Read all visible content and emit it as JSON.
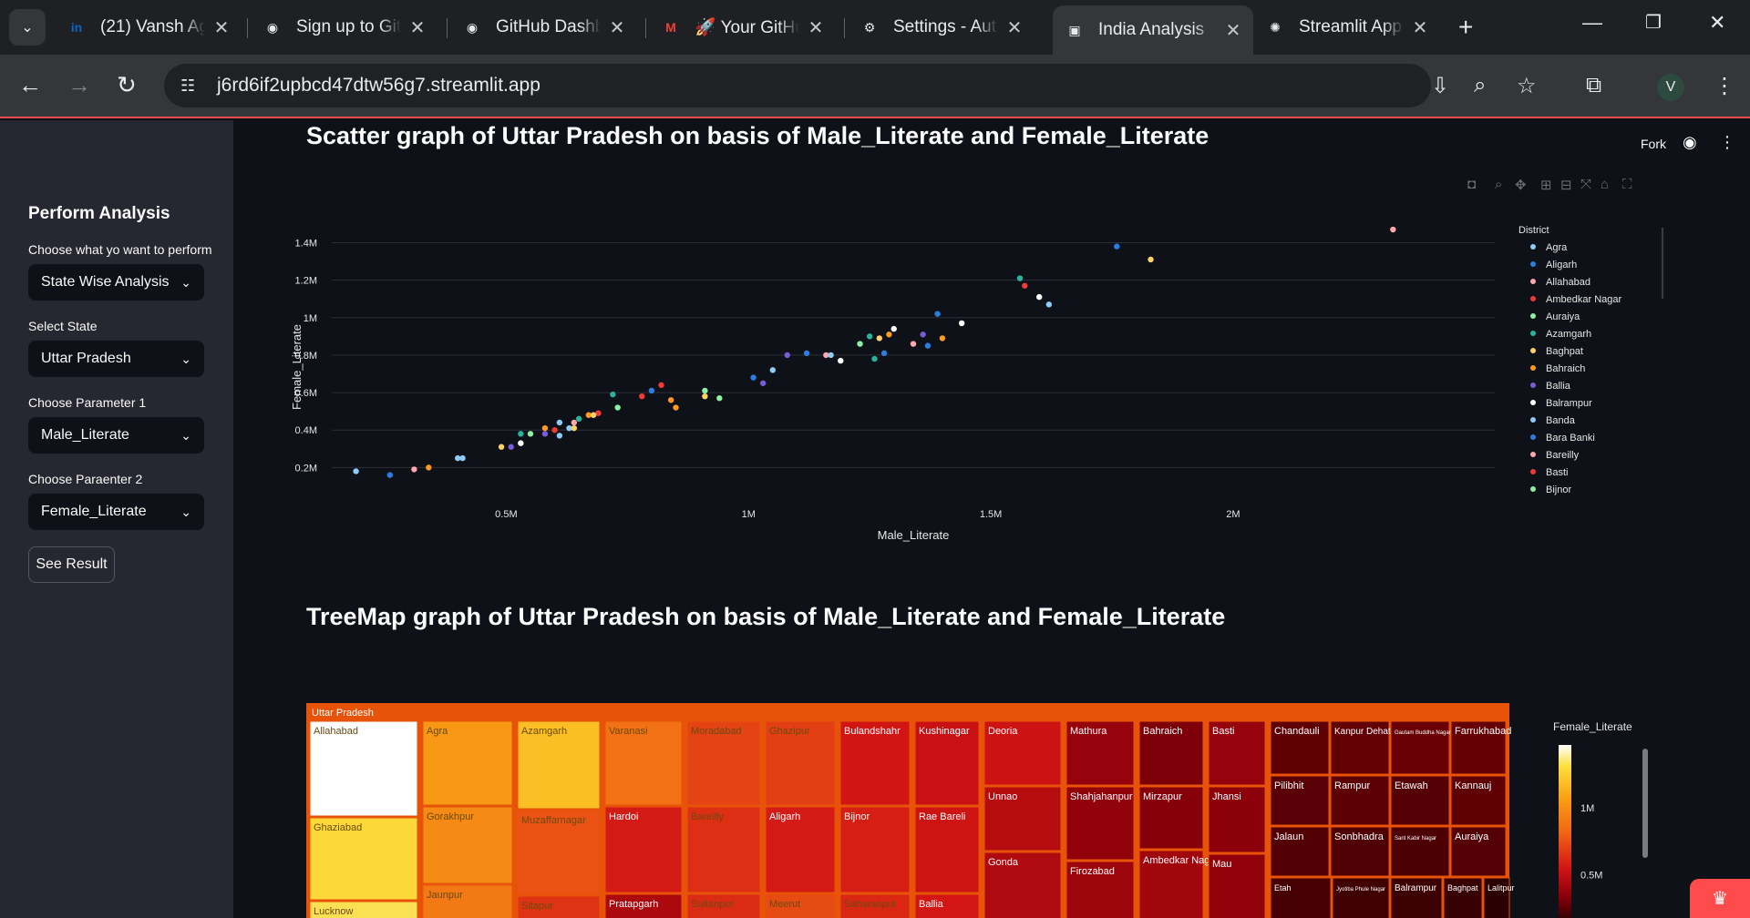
{
  "browser": {
    "tabs": [
      {
        "label": "(21) Vansh Ag",
        "icon": "linkedin-icon",
        "color": "#0a66c2",
        "glyph": "in"
      },
      {
        "label": "Sign up to Git",
        "icon": "github-icon",
        "color": "#e8eaed",
        "glyph": "◉"
      },
      {
        "label": "GitHub Dashb",
        "icon": "github-icon",
        "color": "#e8eaed",
        "glyph": "◉"
      },
      {
        "label": "🚀 Your GitHu",
        "icon": "gmail-icon",
        "color": "#ea4335",
        "glyph": "M"
      },
      {
        "label": "Settings - Aut",
        "icon": "gear-icon",
        "color": "#e8eaed",
        "glyph": "⚙"
      },
      {
        "label": "India Analysis",
        "icon": "streamlit-app-icon",
        "color": "#e8eaed",
        "glyph": "▣",
        "active": true
      },
      {
        "label": "Streamlit App",
        "icon": "openai-icon",
        "color": "#e8eaed",
        "glyph": "✺"
      }
    ],
    "url": "j6rd6if2upbcd47dtw56g7.streamlit.app",
    "avatar_letter": "V"
  },
  "header": {
    "fork_label": "Fork"
  },
  "sidebar": {
    "title": "Perform Analysis",
    "fields": [
      {
        "label": "Choose what yo want to perform",
        "value": "State Wise Analysis"
      },
      {
        "label": "Select State",
        "value": "Uttar Pradesh"
      },
      {
        "label": "Choose Parameter 1",
        "value": "Male_Literate"
      },
      {
        "label": "Choose Paraenter 2",
        "value": "Female_Literate"
      }
    ],
    "button_label": "See Result"
  },
  "main": {
    "scatter_title": "Scatter graph of Uttar Pradesh on basis of Male_Literate and Female_Literate",
    "treemap_title": "TreeMap graph of Uttar Pradesh on basis of Male_Literate and Female_Literate"
  },
  "chart_data": [
    {
      "type": "scatter",
      "title": "",
      "xlabel": "Male_Literate",
      "ylabel": "Female_Literate",
      "xlim": [
        140000,
        2540000
      ],
      "ylim": [
        90000,
        1480000
      ],
      "x_ticks": [
        {
          "v": 500000,
          "label": "0.5M"
        },
        {
          "v": 1000000,
          "label": "1M"
        },
        {
          "v": 1500000,
          "label": "1.5M"
        },
        {
          "v": 2000000,
          "label": "2M"
        }
      ],
      "y_ticks": [
        {
          "v": 200000,
          "label": "0.2M"
        },
        {
          "v": 400000,
          "label": "0.4M"
        },
        {
          "v": 600000,
          "label": "0.6M"
        },
        {
          "v": 800000,
          "label": "0.8M"
        },
        {
          "v": 1000000,
          "label": "1M"
        },
        {
          "v": 1200000,
          "label": "1.2M"
        },
        {
          "v": 1400000,
          "label": "1.4M"
        }
      ],
      "legend": {
        "title": "District",
        "placement": "right",
        "entries": [
          {
            "name": "Agra",
            "color": "#8ecbf7"
          },
          {
            "name": "Aligarh",
            "color": "#2c7de0"
          },
          {
            "name": "Allahabad",
            "color": "#ffa6b0"
          },
          {
            "name": "Ambedkar Nagar",
            "color": "#f03a3a"
          },
          {
            "name": "Auraiya",
            "color": "#8ef0a2"
          },
          {
            "name": "Azamgarh",
            "color": "#2ab39c"
          },
          {
            "name": "Baghpat",
            "color": "#ffd166"
          },
          {
            "name": "Bahraich",
            "color": "#ff9a1f"
          },
          {
            "name": "Ballia",
            "color": "#7a5cd6"
          },
          {
            "name": "Balrampur",
            "color": "#ffffff"
          },
          {
            "name": "Banda",
            "color": "#8ecbf7"
          },
          {
            "name": "Bara Banki",
            "color": "#2c7de0"
          },
          {
            "name": "Bareilly",
            "color": "#ffa6b0"
          },
          {
            "name": "Basti",
            "color": "#f03a3a"
          },
          {
            "name": "Bijnor",
            "color": "#8ef0a2"
          }
        ]
      },
      "points": [
        {
          "x": 2330000,
          "y": 1470000,
          "c": "#ffa6b0"
        },
        {
          "x": 1760000,
          "y": 1380000,
          "c": "#2c7de0"
        },
        {
          "x": 1830000,
          "y": 1310000,
          "c": "#ffd166"
        },
        {
          "x": 1560000,
          "y": 1210000,
          "c": "#2ab39c"
        },
        {
          "x": 1570000,
          "y": 1170000,
          "c": "#f03a3a"
        },
        {
          "x": 1600000,
          "y": 1110000,
          "c": "#ffffff"
        },
        {
          "x": 1620000,
          "y": 1070000,
          "c": "#8ecbf7"
        },
        {
          "x": 1390000,
          "y": 1020000,
          "c": "#2c7de0"
        },
        {
          "x": 1440000,
          "y": 970000,
          "c": "#ffffff"
        },
        {
          "x": 1300000,
          "y": 940000,
          "c": "#ffffff"
        },
        {
          "x": 1290000,
          "y": 910000,
          "c": "#ff9a1f"
        },
        {
          "x": 1250000,
          "y": 900000,
          "c": "#2ab39c"
        },
        {
          "x": 1270000,
          "y": 890000,
          "c": "#ffd166"
        },
        {
          "x": 1360000,
          "y": 910000,
          "c": "#7a5cd6"
        },
        {
          "x": 1400000,
          "y": 890000,
          "c": "#ff9a1f"
        },
        {
          "x": 1230000,
          "y": 860000,
          "c": "#8ef0a2"
        },
        {
          "x": 1340000,
          "y": 860000,
          "c": "#ffa6b0"
        },
        {
          "x": 1370000,
          "y": 850000,
          "c": "#2c7de0"
        },
        {
          "x": 1120000,
          "y": 810000,
          "c": "#2c7de0"
        },
        {
          "x": 1080000,
          "y": 800000,
          "c": "#7a5cd6"
        },
        {
          "x": 1160000,
          "y": 800000,
          "c": "#ffa6b0"
        },
        {
          "x": 1170000,
          "y": 800000,
          "c": "#8ecbf7"
        },
        {
          "x": 1190000,
          "y": 770000,
          "c": "#ffffff"
        },
        {
          "x": 1260000,
          "y": 780000,
          "c": "#2ab39c"
        },
        {
          "x": 1280000,
          "y": 810000,
          "c": "#2c7de0"
        },
        {
          "x": 1050000,
          "y": 720000,
          "c": "#8ecbf7"
        },
        {
          "x": 1010000,
          "y": 680000,
          "c": "#2c7de0"
        },
        {
          "x": 1030000,
          "y": 650000,
          "c": "#7a5cd6"
        },
        {
          "x": 820000,
          "y": 640000,
          "c": "#f03a3a"
        },
        {
          "x": 800000,
          "y": 610000,
          "c": "#2c7de0"
        },
        {
          "x": 780000,
          "y": 580000,
          "c": "#f03a3a"
        },
        {
          "x": 720000,
          "y": 590000,
          "c": "#2ab39c"
        },
        {
          "x": 910000,
          "y": 610000,
          "c": "#8ef0a2"
        },
        {
          "x": 940000,
          "y": 570000,
          "c": "#8ef0a2"
        },
        {
          "x": 910000,
          "y": 580000,
          "c": "#ffd166"
        },
        {
          "x": 840000,
          "y": 560000,
          "c": "#ff9a1f"
        },
        {
          "x": 850000,
          "y": 520000,
          "c": "#ff9a1f"
        },
        {
          "x": 730000,
          "y": 520000,
          "c": "#8ef0a2"
        },
        {
          "x": 690000,
          "y": 490000,
          "c": "#f03a3a"
        },
        {
          "x": 670000,
          "y": 480000,
          "c": "#ff9a1f"
        },
        {
          "x": 680000,
          "y": 480000,
          "c": "#ffd166"
        },
        {
          "x": 650000,
          "y": 460000,
          "c": "#2ab39c"
        },
        {
          "x": 640000,
          "y": 440000,
          "c": "#ffa6b0"
        },
        {
          "x": 610000,
          "y": 440000,
          "c": "#8ecbf7"
        },
        {
          "x": 630000,
          "y": 410000,
          "c": "#8ecbf7"
        },
        {
          "x": 640000,
          "y": 410000,
          "c": "#ffd166"
        },
        {
          "x": 580000,
          "y": 410000,
          "c": "#ff9a1f"
        },
        {
          "x": 600000,
          "y": 400000,
          "c": "#f03a3a"
        },
        {
          "x": 580000,
          "y": 380000,
          "c": "#7a5cd6"
        },
        {
          "x": 610000,
          "y": 370000,
          "c": "#8ecbf7"
        },
        {
          "x": 550000,
          "y": 380000,
          "c": "#8ef0a2"
        },
        {
          "x": 530000,
          "y": 380000,
          "c": "#2ab39c"
        },
        {
          "x": 530000,
          "y": 330000,
          "c": "#ffffff"
        },
        {
          "x": 490000,
          "y": 310000,
          "c": "#ffd166"
        },
        {
          "x": 510000,
          "y": 310000,
          "c": "#7a5cd6"
        },
        {
          "x": 410000,
          "y": 250000,
          "c": "#8ecbf7"
        },
        {
          "x": 400000,
          "y": 250000,
          "c": "#8ecbf7"
        },
        {
          "x": 340000,
          "y": 200000,
          "c": "#ff9a1f"
        },
        {
          "x": 310000,
          "y": 190000,
          "c": "#ffa6b0"
        },
        {
          "x": 260000,
          "y": 160000,
          "c": "#2c7de0"
        },
        {
          "x": 190000,
          "y": 180000,
          "c": "#8ecbf7"
        }
      ]
    },
    {
      "type": "treemap",
      "root_label": "Uttar Pradesh",
      "colorbar": {
        "title": "Female_Literate",
        "ticks": [
          {
            "v": 1000000,
            "label": "1M"
          },
          {
            "v": 500000,
            "label": "0.5M"
          }
        ]
      },
      "cells": [
        {
          "label": "Allahabad",
          "v": 1470000
        },
        {
          "label": "Ghaziabad",
          "v": 1300000
        },
        {
          "label": "Lucknow",
          "v": 1330000
        },
        {
          "label": "Agra",
          "v": 1090000
        },
        {
          "label": "Gorakhpur",
          "v": 1050000
        },
        {
          "label": "Jaunpur",
          "v": 1000000
        },
        {
          "label": "Azamgarh",
          "v": 1210000
        },
        {
          "label": "Muzaffarnagar",
          "v": 900000
        },
        {
          "label": "Sitapur",
          "v": 820000
        },
        {
          "label": "Varanasi",
          "v": 980000
        },
        {
          "label": "Hardoi",
          "v": 760000
        },
        {
          "label": "Pratapgarh",
          "v": 600000
        },
        {
          "label": "Moradabad",
          "v": 860000
        },
        {
          "label": "Bareilly",
          "v": 810000
        },
        {
          "label": "Sultanpur",
          "v": 800000
        },
        {
          "label": "Ghazipur",
          "v": 850000
        },
        {
          "label": "Aligarh",
          "v": 760000
        },
        {
          "label": "Meerut",
          "v": 880000
        },
        {
          "label": "Bulandshahr",
          "v": 740000
        },
        {
          "label": "Bijnor",
          "v": 770000
        },
        {
          "label": "Saharanpur",
          "v": 790000
        },
        {
          "label": "Kushinagar",
          "v": 710000
        },
        {
          "label": "Rae Bareli",
          "v": 730000
        },
        {
          "label": "Ballia",
          "v": 750000
        },
        {
          "label": "Deoria",
          "v": 720000
        },
        {
          "label": "Unnao",
          "v": 640000
        },
        {
          "label": "Gonda",
          "v": 610000
        },
        {
          "label": "Mathura",
          "v": 520000
        },
        {
          "label": "Shahjahanpur",
          "v": 500000
        },
        {
          "label": "Firozabad",
          "v": 540000
        },
        {
          "label": "Bahraich",
          "v": 430000
        },
        {
          "label": "Mirzapur",
          "v": 460000
        },
        {
          "label": "Ambedkar Nagar",
          "v": 560000
        },
        {
          "label": "Basti",
          "v": 520000
        },
        {
          "label": "Jhansi",
          "v": 480000
        },
        {
          "label": "Mau",
          "v": 500000
        },
        {
          "label": "Chandauli",
          "v": 330000
        },
        {
          "label": "Kanpur Dehat",
          "v": 340000
        },
        {
          "label": "Gautam Buddha Nagar",
          "v": 360000
        },
        {
          "label": "Farrukhabad",
          "v": 350000
        },
        {
          "label": "Pilibhit",
          "v": 310000
        },
        {
          "label": "Rampur",
          "v": 320000
        },
        {
          "label": "Etawah",
          "v": 300000
        },
        {
          "label": "Kannauj",
          "v": 330000
        },
        {
          "label": "Jalaun",
          "v": 290000
        },
        {
          "label": "Sonbhadra",
          "v": 280000
        },
        {
          "label": "Sant Kabir Nagar",
          "v": 270000
        },
        {
          "label": "Auraiya",
          "v": 300000
        },
        {
          "label": "Etah",
          "v": 250000
        },
        {
          "label": "Jyotiba Phule Nagar",
          "v": 230000
        },
        {
          "label": "Balrampur",
          "v": 220000
        },
        {
          "label": "Baghpat",
          "v": 200000
        },
        {
          "label": "Lalitpur",
          "v": 160000
        }
      ]
    }
  ]
}
